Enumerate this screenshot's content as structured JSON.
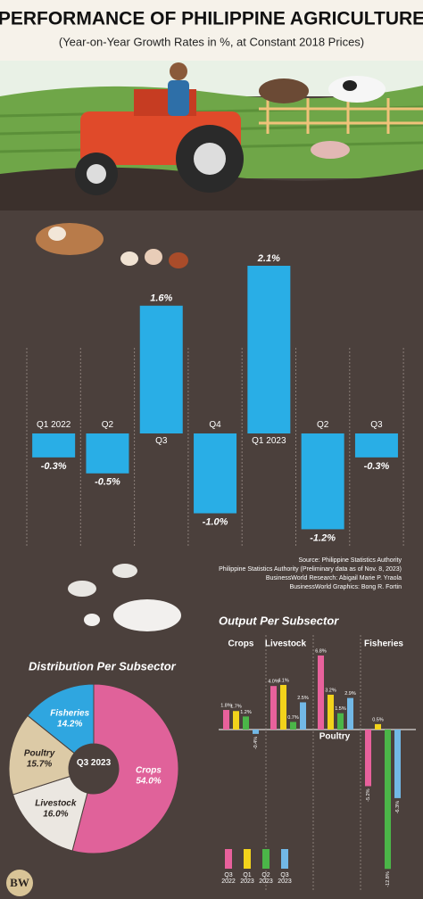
{
  "chart_data": [
    {
      "type": "bar",
      "title": "PERFORMANCE OF PHILIPPINE AGRICULTURE",
      "subtitle": "(Year-on-Year Growth Rates in %, at Constant 2018 Prices)",
      "categories": [
        "Q1 2022",
        "Q2",
        "Q3",
        "Q4",
        "Q1 2023",
        "Q2",
        "Q3"
      ],
      "values": [
        -0.3,
        -0.5,
        1.6,
        -1.0,
        2.1,
        -1.2,
        -0.3
      ],
      "value_labels": [
        "-0.3%",
        "-0.5%",
        "1.6%",
        "-1.0%",
        "2.1%",
        "-1.2%",
        "-0.3%"
      ],
      "color": "#29aee6"
    },
    {
      "type": "pie",
      "title": "Distribution Per Subsector",
      "center_label": "Q3 2023",
      "categories": [
        "Crops",
        "Livestock",
        "Poultry",
        "Fisheries"
      ],
      "values": [
        54.0,
        16.0,
        15.7,
        14.2
      ],
      "value_labels": [
        "54.0%",
        "16.0%",
        "15.7%",
        "14.2%"
      ],
      "colors": [
        "#e0629a",
        "#ebe7e1",
        "#dccaa6",
        "#2fa6e0"
      ]
    },
    {
      "type": "bar",
      "title": "Output Per Subsector",
      "categories": [
        "Crops",
        "Livestock",
        "Poultry",
        "Fisheries"
      ],
      "series": [
        {
          "name": "Q3 2022",
          "color": "#e8619c",
          "values": [
            1.8,
            4.0,
            6.8,
            -5.2
          ],
          "value_labels": [
            "1.8%",
            "4.0%",
            "6.8%",
            "-5.2%"
          ]
        },
        {
          "name": "Q1 2023",
          "color": "#f2d31b",
          "values": [
            1.7,
            4.1,
            3.2,
            0.5
          ],
          "value_labels": [
            "1.7%",
            "4.1%",
            "3.2%",
            "0.5%"
          ]
        },
        {
          "name": "Q2 2023",
          "color": "#4bb648",
          "values": [
            1.2,
            0.7,
            1.5,
            -12.8
          ],
          "value_labels": [
            "1.2%",
            "0.7%",
            "1.5%",
            "-12.8%"
          ]
        },
        {
          "name": "Q3 2023",
          "color": "#72b8e6",
          "values": [
            -0.4,
            2.5,
            2.9,
            -6.3
          ],
          "value_labels": [
            "-0.4%",
            "2.5%",
            "2.9%",
            "-6.3%"
          ]
        }
      ]
    }
  ],
  "credits": [
    "Source: Philippine Statistics Authority",
    "Philippine Statistics Authority (Preliminary data as of Nov. 8, 2023)",
    "BusinessWorld Research: Abigail Marie P. Yraola",
    "BusinessWorld Graphics: Bong R. Fortin"
  ],
  "logo": "BW"
}
